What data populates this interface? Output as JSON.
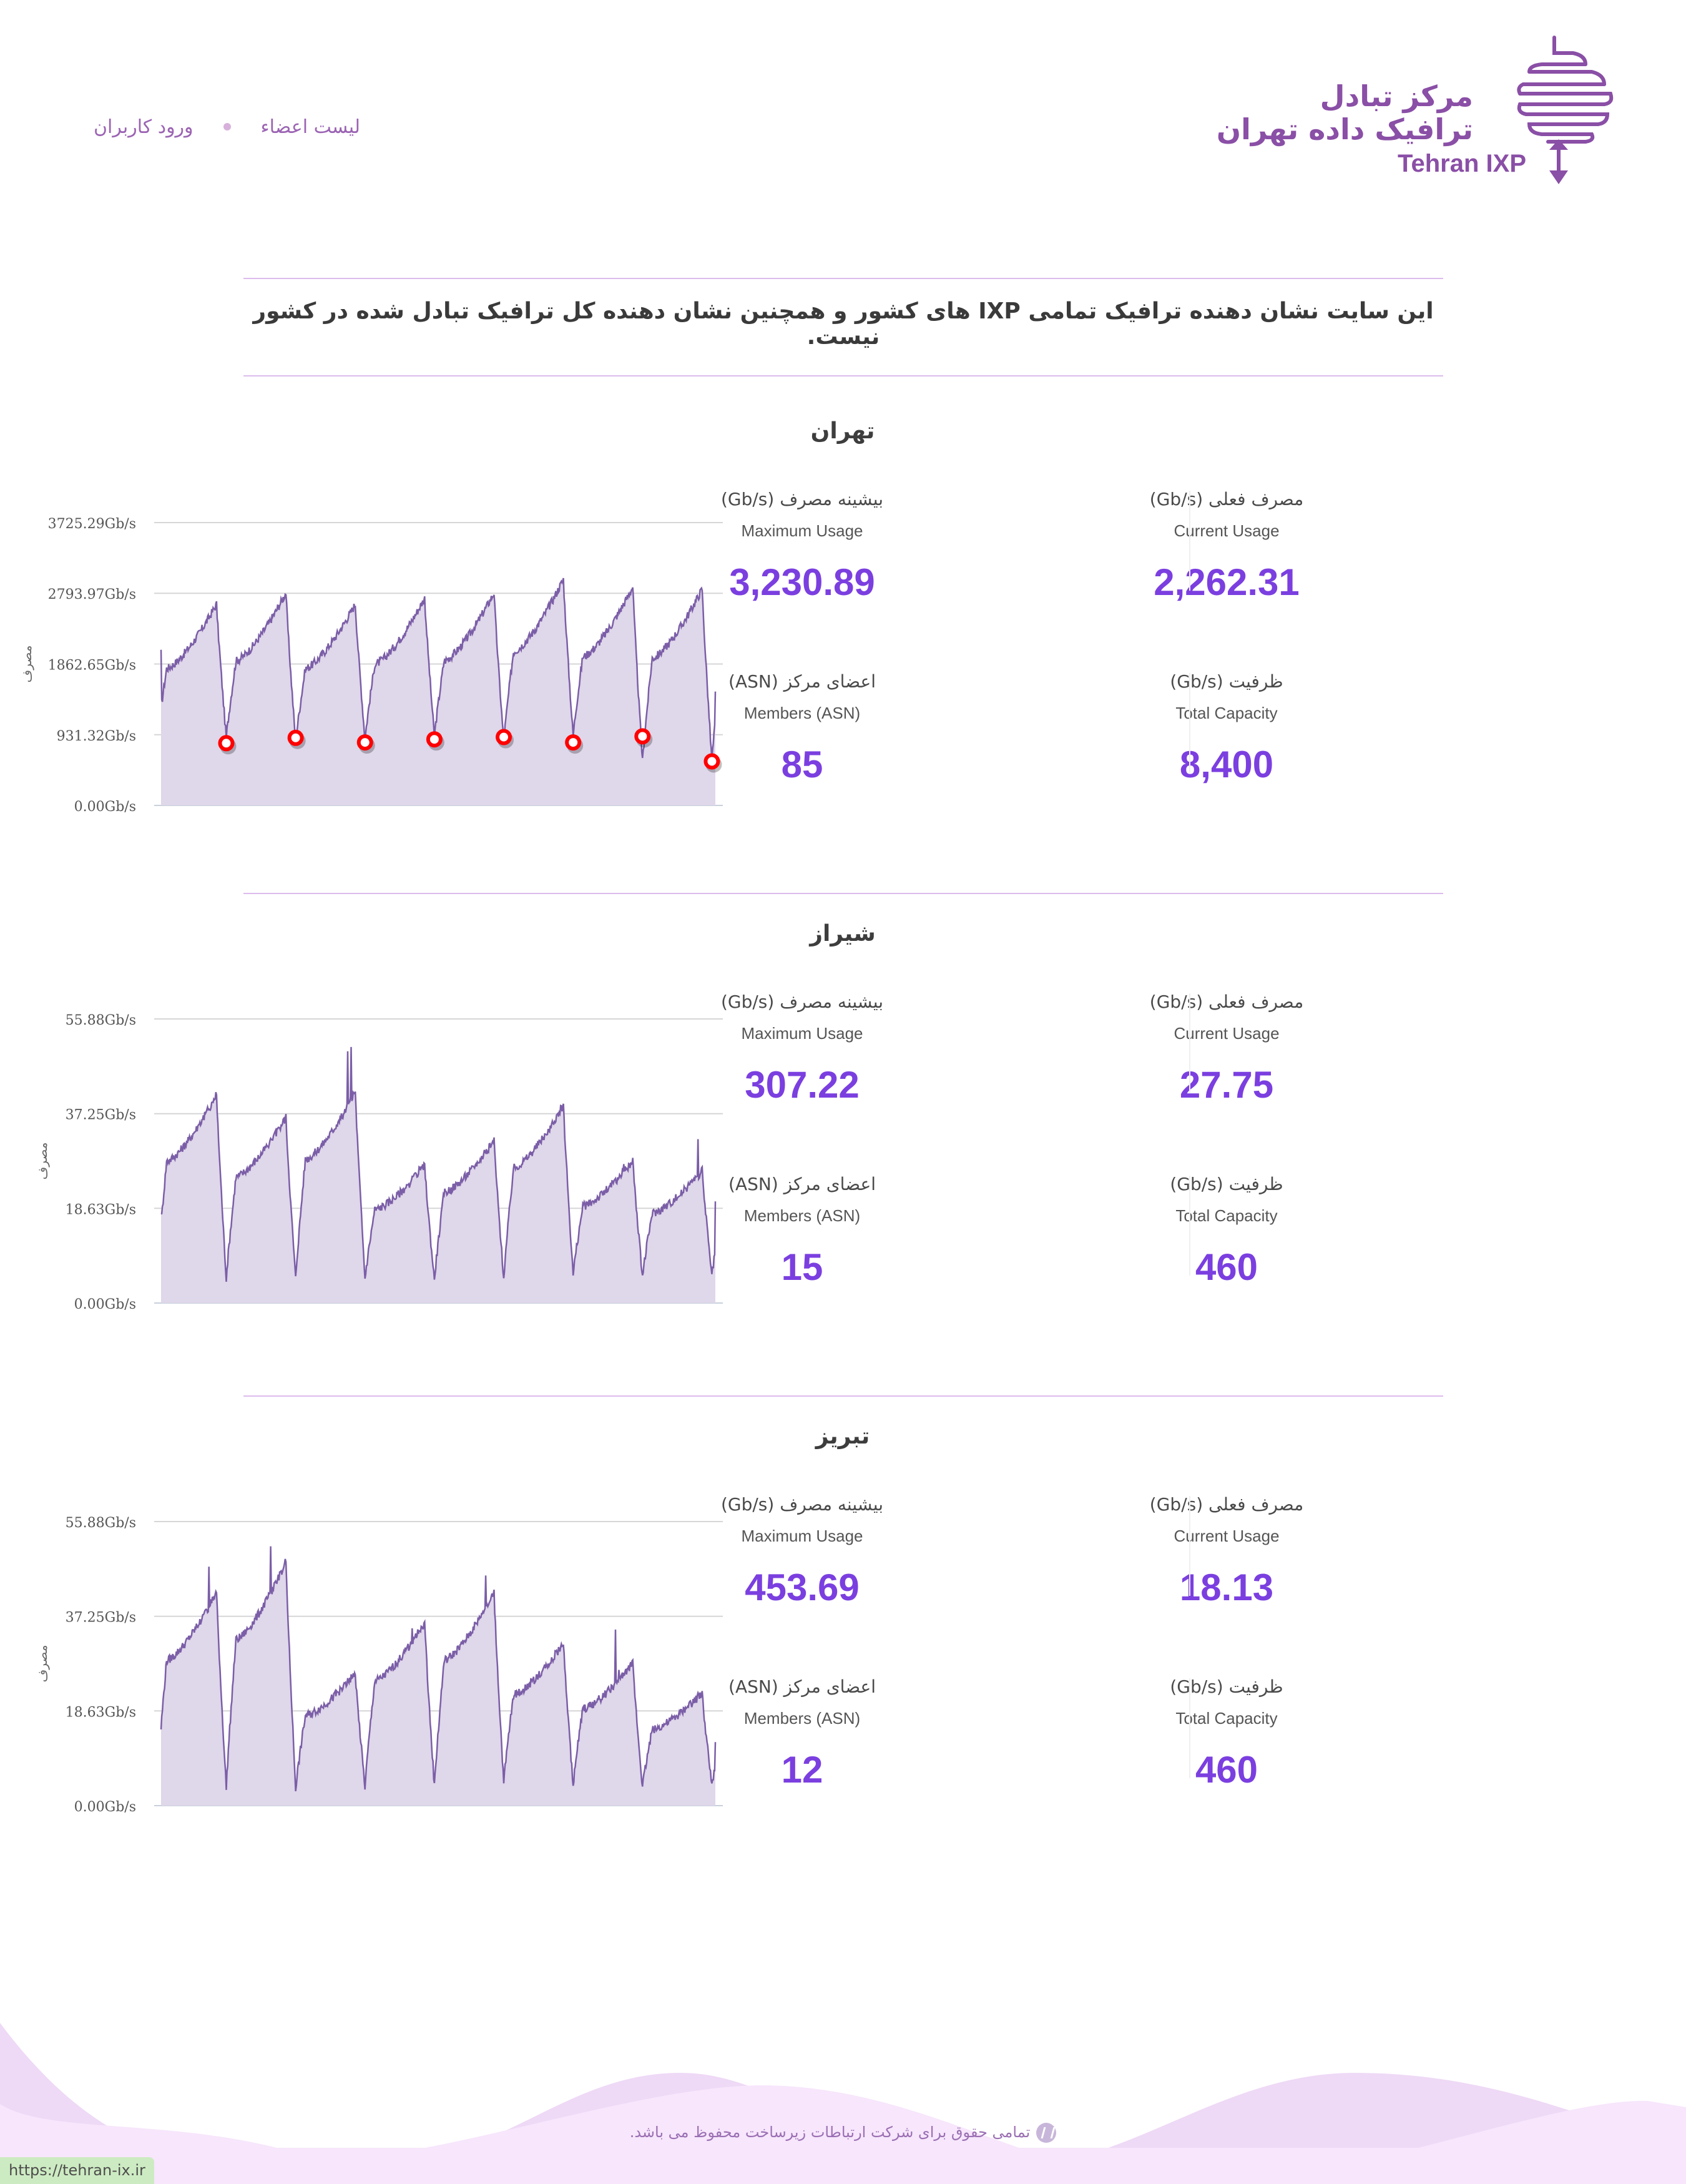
{
  "header": {
    "logo": {
      "fa_line1": "مرکز تبادل",
      "fa_line2": "ترافیک داده تهران",
      "en": "Tehran IXP",
      "color": "#8a4fa6"
    },
    "nav": [
      {
        "label": "لیست اعضاء"
      },
      {
        "label": "ورود کاربران"
      }
    ]
  },
  "notice": "این سایت نشان دهنده ترافیک تمامی IXP های کشور و همچنین نشان دهنده کل ترافیک تبادل شده در کشور نیست.",
  "stat_labels": {
    "current_fa": "مصرف فعلی (Gb/s)",
    "current_en": "Current Usage",
    "max_fa": "بیشینه مصرف (Gb/s)",
    "max_en": "Maximum Usage",
    "capacity_fa": "ظرفیت (Gb/s)",
    "capacity_en": "Total Capacity",
    "members_fa": "اعضای مرکز (ASN)",
    "members_en": "Members (ASN)"
  },
  "sections": [
    {
      "city": "تهران",
      "current": "2,262.31",
      "max": "3,230.89",
      "capacity": "8,400",
      "members": "85"
    },
    {
      "city": "شیراز",
      "current": "27.75",
      "max": "307.22",
      "capacity": "460",
      "members": "15"
    },
    {
      "city": "تبریز",
      "current": "18.13",
      "max": "453.69",
      "capacity": "460",
      "members": "12"
    }
  ],
  "chart_data": [
    {
      "type": "area",
      "title": "تهران",
      "ylabel": "مصرف",
      "ylim": [
        0,
        3725.29
      ],
      "yticks": [
        0,
        931.32,
        1862.65,
        2793.97,
        3725.29
      ],
      "ytick_labels": [
        "0.00Gb/s",
        "931.32Gb/s",
        "1862.65Gb/s",
        "2793.97Gb/s",
        "3725.29Gb/s"
      ],
      "grid": true,
      "days": 8,
      "daily_min_markers": [
        820,
        890,
        830,
        870,
        900,
        830,
        910,
        580
      ],
      "daily_peaks": [
        2650,
        2800,
        2650,
        2730,
        2800,
        2980,
        2880,
        2850
      ],
      "start_value": 2050,
      "end_value": 1500,
      "marker_color": "#ff0000",
      "line_color": "#7b5ea7",
      "fill_color": "#dfd7ea"
    },
    {
      "type": "area",
      "title": "شیراز",
      "ylabel": "مصرف",
      "ylim": [
        0,
        55.88
      ],
      "yticks": [
        0,
        18.63,
        37.25,
        55.88
      ],
      "ytick_labels": [
        "0.00Gb/s",
        "18.63Gb/s",
        "37.25Gb/s",
        "55.88Gb/s"
      ],
      "grid": true,
      "days": 8,
      "daily_min": [
        4.5,
        4.8,
        4.8,
        4.8,
        4.5,
        4.8,
        5.5,
        5.2
      ],
      "daily_peaks": [
        41,
        36.5,
        41.5,
        27,
        32,
        39,
        28,
        26
      ],
      "start_value": 17.5,
      "end_value": 20,
      "line_color": "#7b5ea7",
      "fill_color": "#dfd7ea"
    },
    {
      "type": "area",
      "title": "تبریز",
      "ylabel": "مصرف",
      "ylim": [
        0,
        55.88
      ],
      "yticks": [
        0,
        18.63,
        37.25,
        55.88
      ],
      "ytick_labels": [
        "0.00Gb/s",
        "18.63Gb/s",
        "37.25Gb/s",
        "55.88Gb/s"
      ],
      "grid": true,
      "days": 8,
      "daily_min": [
        4,
        3.5,
        3.3,
        3.7,
        3.8,
        4.4,
        4,
        3.8
      ],
      "daily_peaks": [
        42,
        48,
        26,
        36,
        42,
        32,
        28,
        22
      ],
      "start_value": 15,
      "end_value": 12.5,
      "line_color": "#7b5ea7",
      "fill_color": "#dfd7ea"
    }
  ],
  "footer": {
    "copyright": "تمامی حقوق برای شرکت ارتباطات زیرساخت محفوظ می باشد.",
    "status_url": "https://tehran-ix.ir"
  }
}
